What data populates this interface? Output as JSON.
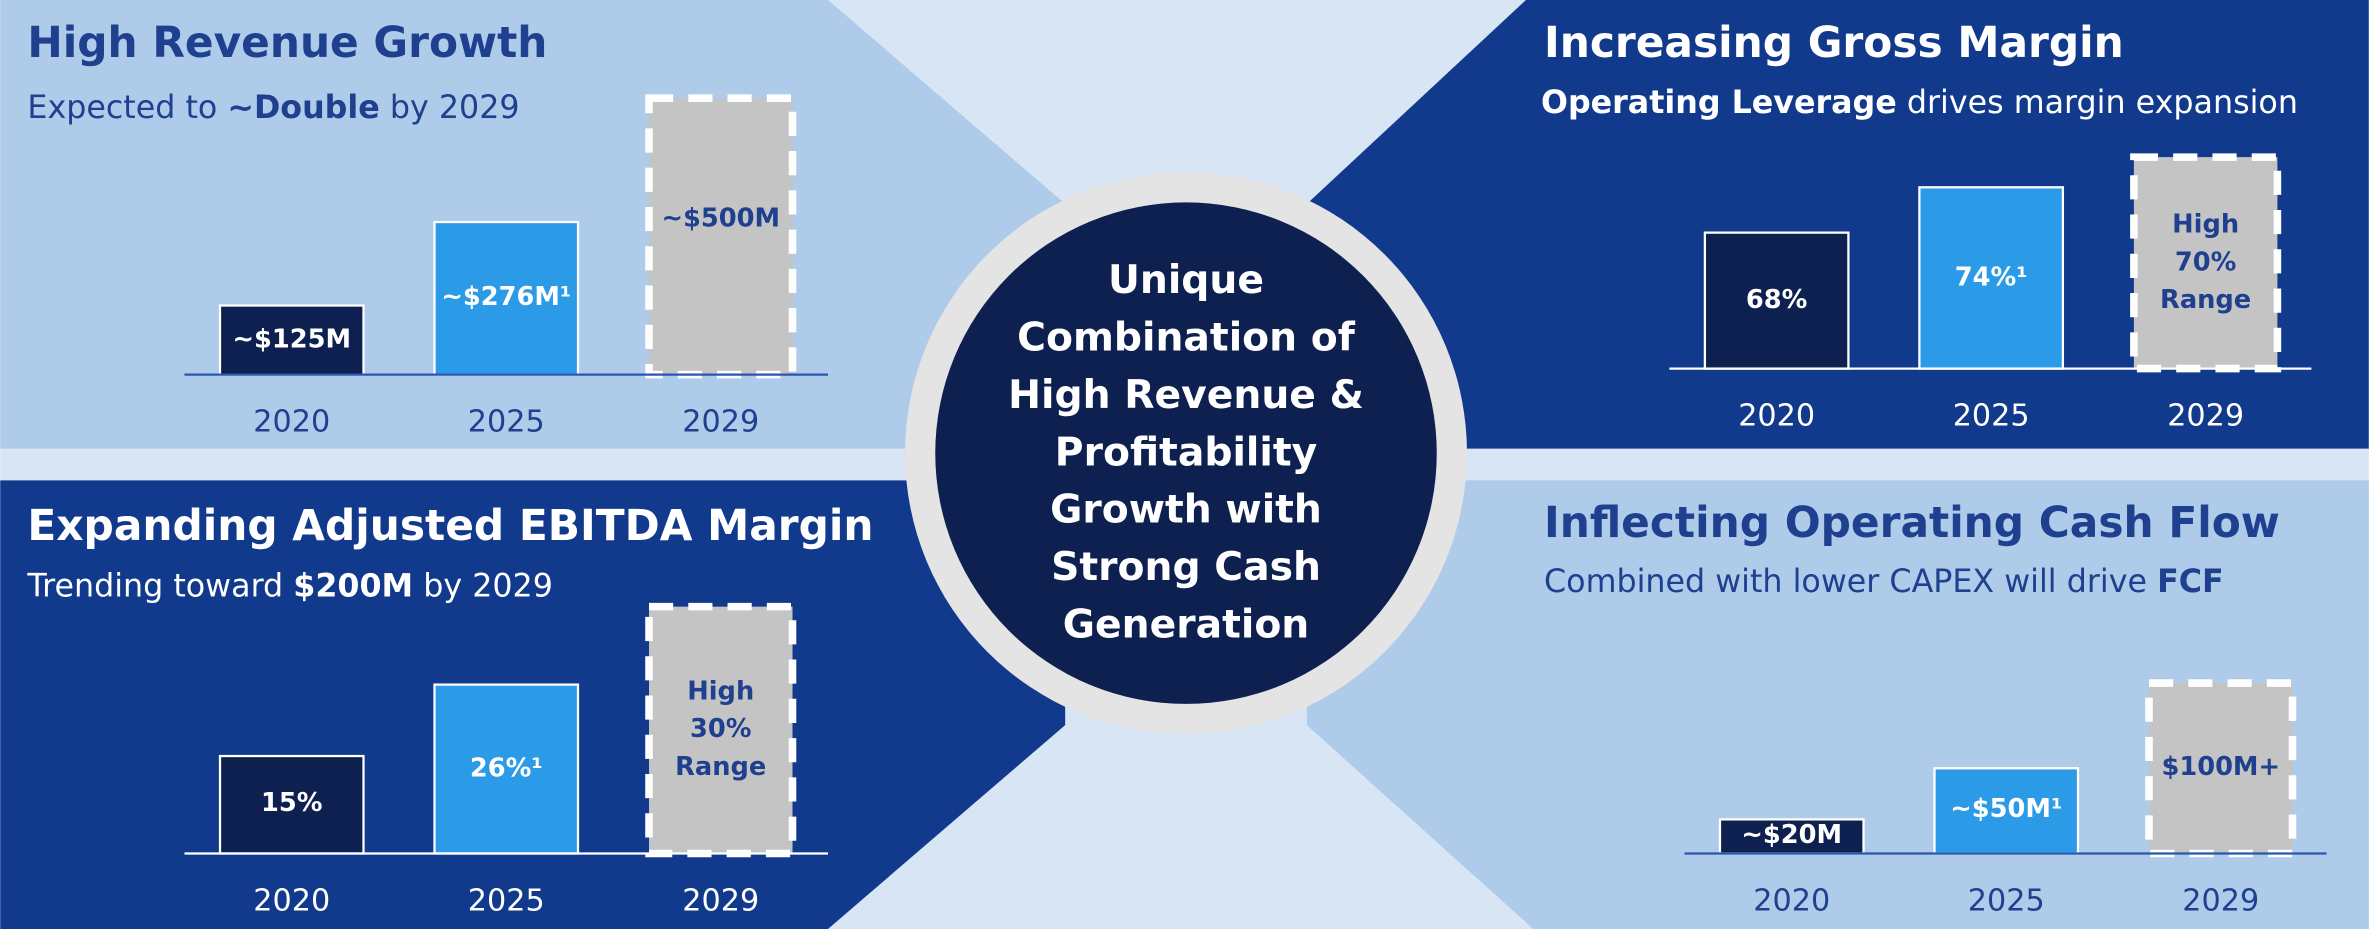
{
  "chart_data": [
    {
      "type": "bar",
      "title": "High Revenue Growth",
      "subtitle": [
        "Expected to ",
        "~Double",
        " by 2029"
      ],
      "subtitle_bold": [
        false,
        true,
        false
      ],
      "categories": [
        "2020",
        "2025",
        "2029"
      ],
      "values": [
        125,
        276,
        500
      ],
      "value_labels": [
        "~$125M",
        "~$276M¹",
        "~$500M"
      ],
      "colors": [
        "#0e2050",
        "#2b9be8",
        "#c4c4c4"
      ],
      "ylim": [
        0,
        500
      ]
    },
    {
      "type": "bar",
      "title": "Increasing Gross Margin",
      "subtitle": [
        "Operating Leverage",
        " drives margin expansion"
      ],
      "subtitle_bold": [
        true,
        false
      ],
      "categories": [
        "2020",
        "2025",
        "2029"
      ],
      "values": [
        68,
        74,
        78
      ],
      "value_labels": [
        "68%",
        "74%¹",
        "High 70% Range"
      ],
      "colors": [
        "#0e2050",
        "#2b9be8",
        "#c4c4c4"
      ],
      "ylim": [
        50,
        80
      ]
    },
    {
      "type": "bar",
      "title": "Expanding Adjusted EBITDA Margin",
      "subtitle": [
        "Trending toward ",
        "$200M",
        " by 2029"
      ],
      "subtitle_bold": [
        false,
        true,
        false
      ],
      "categories": [
        "2020",
        "2025",
        "2029"
      ],
      "values": [
        15,
        26,
        38
      ],
      "value_labels": [
        "15%",
        "26%¹",
        "High 30% Range"
      ],
      "colors": [
        "#0e2050",
        "#2b9be8",
        "#c4c4c4"
      ],
      "ylim": [
        0,
        40
      ]
    },
    {
      "type": "bar",
      "title": "Inflecting Operating Cash Flow",
      "subtitle": [
        "Combined with lower CAPEX will drive ",
        "FCF"
      ],
      "subtitle_bold": [
        false,
        true
      ],
      "categories": [
        "2020",
        "2025",
        "2029"
      ],
      "values": [
        20,
        50,
        100
      ],
      "value_labels": [
        "~$20M",
        "~$50M¹",
        "$100M+"
      ],
      "colors": [
        "#0e2050",
        "#2b9be8",
        "#c4c4c4"
      ],
      "ylim": [
        0,
        125
      ]
    }
  ],
  "center_text": "Unique Combination of High Revenue & Profitability Growth with Strong Cash Generation"
}
